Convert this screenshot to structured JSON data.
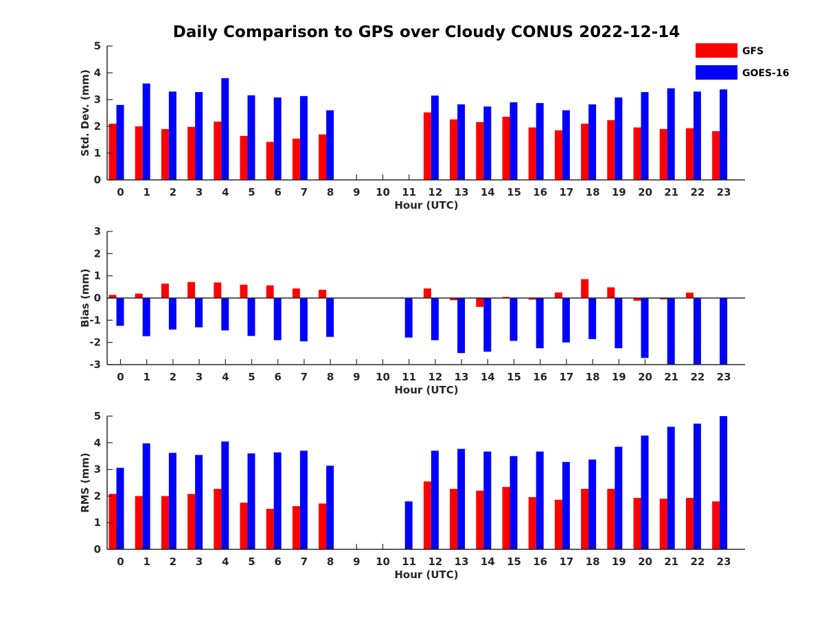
{
  "title": "Daily Comparison to GPS over Cloudy CONUS 2022-12-14",
  "colors": {
    "GFS": "#ff0000",
    "GOES-16": "#0000ff",
    "axis": "#262626"
  },
  "legend": {
    "placement": "top-right",
    "entries": [
      "GFS",
      "GOES-16"
    ]
  },
  "chart_data": [
    {
      "type": "bar",
      "xlabel": "Hour (UTC)",
      "ylabel": "Std. Dev. (mm)",
      "ylim": [
        0,
        5
      ],
      "yticks": [
        0,
        1,
        2,
        3,
        4,
        5
      ],
      "grid": false,
      "categories": [
        "0",
        "1",
        "2",
        "3",
        "4",
        "5",
        "6",
        "7",
        "8",
        "9",
        "10",
        "11",
        "12",
        "13",
        "14",
        "15",
        "16",
        "17",
        "18",
        "19",
        "20",
        "21",
        "22",
        "23"
      ],
      "series": [
        {
          "name": "GFS",
          "values": [
            2.1,
            2.0,
            1.9,
            1.98,
            2.18,
            1.64,
            1.42,
            1.54,
            1.7,
            null,
            null,
            null,
            2.52,
            2.26,
            2.16,
            2.36,
            1.96,
            1.85,
            2.1,
            2.23,
            1.96,
            1.9,
            1.93,
            1.82
          ]
        },
        {
          "name": "GOES-16",
          "values": [
            2.8,
            3.6,
            3.3,
            3.28,
            3.8,
            3.16,
            3.08,
            3.13,
            2.6,
            null,
            null,
            null,
            3.15,
            2.82,
            2.74,
            2.9,
            2.87,
            2.6,
            2.82,
            3.08,
            3.28,
            3.42,
            3.3,
            3.38
          ]
        }
      ]
    },
    {
      "type": "bar",
      "xlabel": "Hour (UTC)",
      "ylabel": "Bias (mm)",
      "ylim": [
        -3,
        3
      ],
      "yticks": [
        -3,
        -2,
        -1,
        0,
        1,
        2,
        3
      ],
      "grid": false,
      "categories": [
        "0",
        "1",
        "2",
        "3",
        "4",
        "5",
        "6",
        "7",
        "8",
        "9",
        "10",
        "11",
        "12",
        "13",
        "14",
        "15",
        "16",
        "17",
        "18",
        "19",
        "20",
        "21",
        "22",
        "23"
      ],
      "series": [
        {
          "name": "GFS",
          "values": [
            0.14,
            0.2,
            0.65,
            0.72,
            0.7,
            0.6,
            0.57,
            0.43,
            0.37,
            null,
            null,
            0.02,
            0.43,
            -0.1,
            -0.4,
            0.05,
            -0.07,
            0.25,
            0.85,
            0.48,
            -0.12,
            -0.06,
            0.24,
            0.0
          ]
        },
        {
          "name": "GOES-16",
          "values": [
            -1.25,
            -1.72,
            -1.42,
            -1.32,
            -1.46,
            -1.71,
            -1.9,
            -1.95,
            -1.75,
            null,
            null,
            -1.78,
            -1.9,
            -2.48,
            -2.42,
            -1.93,
            -2.26,
            -2.0,
            -1.85,
            -2.26,
            -2.7,
            -3.0,
            -3.0,
            -3.0
          ]
        }
      ]
    },
    {
      "type": "bar",
      "xlabel": "Hour (UTC)",
      "ylabel": "RMS (mm)",
      "ylim": [
        0,
        5
      ],
      "yticks": [
        0,
        1,
        2,
        3,
        4,
        5
      ],
      "grid": false,
      "categories": [
        "0",
        "1",
        "2",
        "3",
        "4",
        "5",
        "6",
        "7",
        "8",
        "9",
        "10",
        "11",
        "12",
        "13",
        "14",
        "15",
        "16",
        "17",
        "18",
        "19",
        "20",
        "21",
        "22",
        "23"
      ],
      "series": [
        {
          "name": "GFS",
          "values": [
            2.08,
            2.0,
            2.0,
            2.08,
            2.27,
            1.75,
            1.52,
            1.62,
            1.72,
            null,
            null,
            null,
            2.55,
            2.27,
            2.2,
            2.34,
            1.96,
            1.86,
            2.27,
            2.27,
            1.93,
            1.9,
            1.93,
            1.8
          ]
        },
        {
          "name": "GOES-16",
          "values": [
            3.06,
            3.98,
            3.62,
            3.54,
            4.05,
            3.6,
            3.64,
            3.7,
            3.14,
            null,
            null,
            1.8,
            3.7,
            3.77,
            3.67,
            3.5,
            3.67,
            3.28,
            3.37,
            3.85,
            4.27,
            4.6,
            4.72,
            5.0
          ]
        }
      ]
    }
  ]
}
